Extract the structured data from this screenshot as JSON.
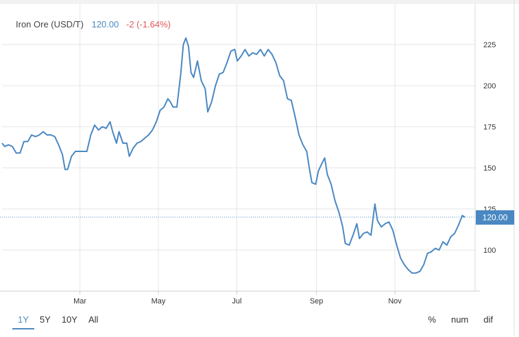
{
  "legend": {
    "name": "Iron Ore (USD/T)",
    "price": "120.00",
    "change": "-2 (-1.64%)"
  },
  "range_tabs": [
    {
      "label": "1Y",
      "active": true
    },
    {
      "label": "5Y",
      "active": false
    },
    {
      "label": "10Y",
      "active": false
    },
    {
      "label": "All",
      "active": false
    }
  ],
  "view_tabs": [
    {
      "label": "%"
    },
    {
      "label": "num"
    },
    {
      "label": "dif"
    }
  ],
  "colors": {
    "line": "#4a88c2",
    "price_tag": "#4a88c2",
    "change_negative": "#e15656",
    "grid": "#e6e6e6"
  },
  "chart_data": {
    "type": "line",
    "title": "Iron Ore (USD/T)",
    "xlabel": "",
    "ylabel": "",
    "ylim": [
      75,
      240
    ],
    "yticks": [
      100,
      125,
      150,
      175,
      200,
      225
    ],
    "xticks": [
      "Mar",
      "May",
      "Jul",
      "Sep",
      "Nov"
    ],
    "grid": true,
    "last_value_label": "120.00",
    "last_value": 120,
    "series": [
      {
        "name": "Iron Ore (USD/T)",
        "points": [
          [
            "2021-01-01",
            165
          ],
          [
            "2021-01-03",
            163
          ],
          [
            "2021-01-06",
            164
          ],
          [
            "2021-01-09",
            163
          ],
          [
            "2021-01-12",
            159
          ],
          [
            "2021-01-15",
            159
          ],
          [
            "2021-01-18",
            166
          ],
          [
            "2021-01-21",
            166
          ],
          [
            "2021-01-24",
            170
          ],
          [
            "2021-01-27",
            169
          ],
          [
            "2021-01-30",
            170
          ],
          [
            "2021-02-02",
            172
          ],
          [
            "2021-02-05",
            170
          ],
          [
            "2021-02-08",
            170
          ],
          [
            "2021-02-11",
            169
          ],
          [
            "2021-02-14",
            164
          ],
          [
            "2021-02-17",
            158
          ],
          [
            "2021-02-19",
            149
          ],
          [
            "2021-02-21",
            149
          ],
          [
            "2021-02-24",
            157
          ],
          [
            "2021-02-27",
            160
          ],
          [
            "2021-03-02",
            160
          ],
          [
            "2021-03-05",
            160
          ],
          [
            "2021-03-08",
            160
          ],
          [
            "2021-03-11",
            170
          ],
          [
            "2021-03-14",
            176
          ],
          [
            "2021-03-17",
            173
          ],
          [
            "2021-03-20",
            175
          ],
          [
            "2021-03-23",
            174
          ],
          [
            "2021-03-26",
            178
          ],
          [
            "2021-03-28",
            172
          ],
          [
            "2021-03-31",
            165
          ],
          [
            "2021-04-02",
            172
          ],
          [
            "2021-04-05",
            165
          ],
          [
            "2021-04-08",
            165
          ],
          [
            "2021-04-10",
            157
          ],
          [
            "2021-04-13",
            162
          ],
          [
            "2021-04-16",
            165
          ],
          [
            "2021-04-19",
            166
          ],
          [
            "2021-04-22",
            168
          ],
          [
            "2021-04-25",
            170
          ],
          [
            "2021-04-28",
            173
          ],
          [
            "2021-05-01",
            178
          ],
          [
            "2021-05-04",
            185
          ],
          [
            "2021-05-07",
            187
          ],
          [
            "2021-05-10",
            192
          ],
          [
            "2021-05-12",
            190
          ],
          [
            "2021-05-14",
            187
          ],
          [
            "2021-05-17",
            187
          ],
          [
            "2021-05-20",
            207
          ],
          [
            "2021-05-22",
            225
          ],
          [
            "2021-05-24",
            229
          ],
          [
            "2021-05-26",
            224
          ],
          [
            "2021-05-28",
            208
          ],
          [
            "2021-05-30",
            205
          ],
          [
            "2021-06-02",
            215
          ],
          [
            "2021-06-05",
            203
          ],
          [
            "2021-06-08",
            198
          ],
          [
            "2021-06-10",
            184
          ],
          [
            "2021-06-13",
            190
          ],
          [
            "2021-06-16",
            200
          ],
          [
            "2021-06-19",
            207
          ],
          [
            "2021-06-22",
            208
          ],
          [
            "2021-06-25",
            214
          ],
          [
            "2021-06-28",
            221
          ],
          [
            "2021-07-01",
            222
          ],
          [
            "2021-07-03",
            215
          ],
          [
            "2021-07-06",
            218
          ],
          [
            "2021-07-09",
            222
          ],
          [
            "2021-07-12",
            218
          ],
          [
            "2021-07-15",
            220
          ],
          [
            "2021-07-18",
            219
          ],
          [
            "2021-07-21",
            222
          ],
          [
            "2021-07-24",
            218
          ],
          [
            "2021-07-27",
            222
          ],
          [
            "2021-07-30",
            219
          ],
          [
            "2021-08-02",
            214
          ],
          [
            "2021-08-05",
            206
          ],
          [
            "2021-08-08",
            203
          ],
          [
            "2021-08-11",
            192
          ],
          [
            "2021-08-14",
            191
          ],
          [
            "2021-08-17",
            181
          ],
          [
            "2021-08-20",
            170
          ],
          [
            "2021-08-23",
            164
          ],
          [
            "2021-08-26",
            160
          ],
          [
            "2021-08-28",
            150
          ],
          [
            "2021-08-30",
            141
          ],
          [
            "2021-09-02",
            140
          ],
          [
            "2021-09-04",
            148
          ],
          [
            "2021-09-07",
            153
          ],
          [
            "2021-09-09",
            156
          ],
          [
            "2021-09-11",
            146
          ],
          [
            "2021-09-14",
            140
          ],
          [
            "2021-09-17",
            130
          ],
          [
            "2021-09-20",
            123
          ],
          [
            "2021-09-23",
            114
          ],
          [
            "2021-09-25",
            104
          ],
          [
            "2021-09-28",
            103
          ],
          [
            "2021-10-01",
            109
          ],
          [
            "2021-10-04",
            116
          ],
          [
            "2021-10-06",
            107
          ],
          [
            "2021-10-09",
            110
          ],
          [
            "2021-10-12",
            111
          ],
          [
            "2021-10-15",
            109
          ],
          [
            "2021-10-18",
            128
          ],
          [
            "2021-10-20",
            118
          ],
          [
            "2021-10-23",
            114
          ],
          [
            "2021-10-26",
            116
          ],
          [
            "2021-10-29",
            117
          ],
          [
            "2021-11-01",
            112
          ],
          [
            "2021-11-04",
            103
          ],
          [
            "2021-11-07",
            95
          ],
          [
            "2021-11-10",
            91
          ],
          [
            "2021-11-13",
            88
          ],
          [
            "2021-11-16",
            86
          ],
          [
            "2021-11-19",
            86
          ],
          [
            "2021-11-22",
            87
          ],
          [
            "2021-11-25",
            91
          ],
          [
            "2021-11-28",
            98
          ],
          [
            "2021-12-01",
            99
          ],
          [
            "2021-12-04",
            101
          ],
          [
            "2021-12-07",
            100
          ],
          [
            "2021-12-10",
            105
          ],
          [
            "2021-12-13",
            103
          ],
          [
            "2021-12-16",
            108
          ],
          [
            "2021-12-19",
            110
          ],
          [
            "2021-12-22",
            115
          ],
          [
            "2021-12-25",
            121
          ],
          [
            "2021-12-27",
            120
          ]
        ]
      }
    ]
  }
}
